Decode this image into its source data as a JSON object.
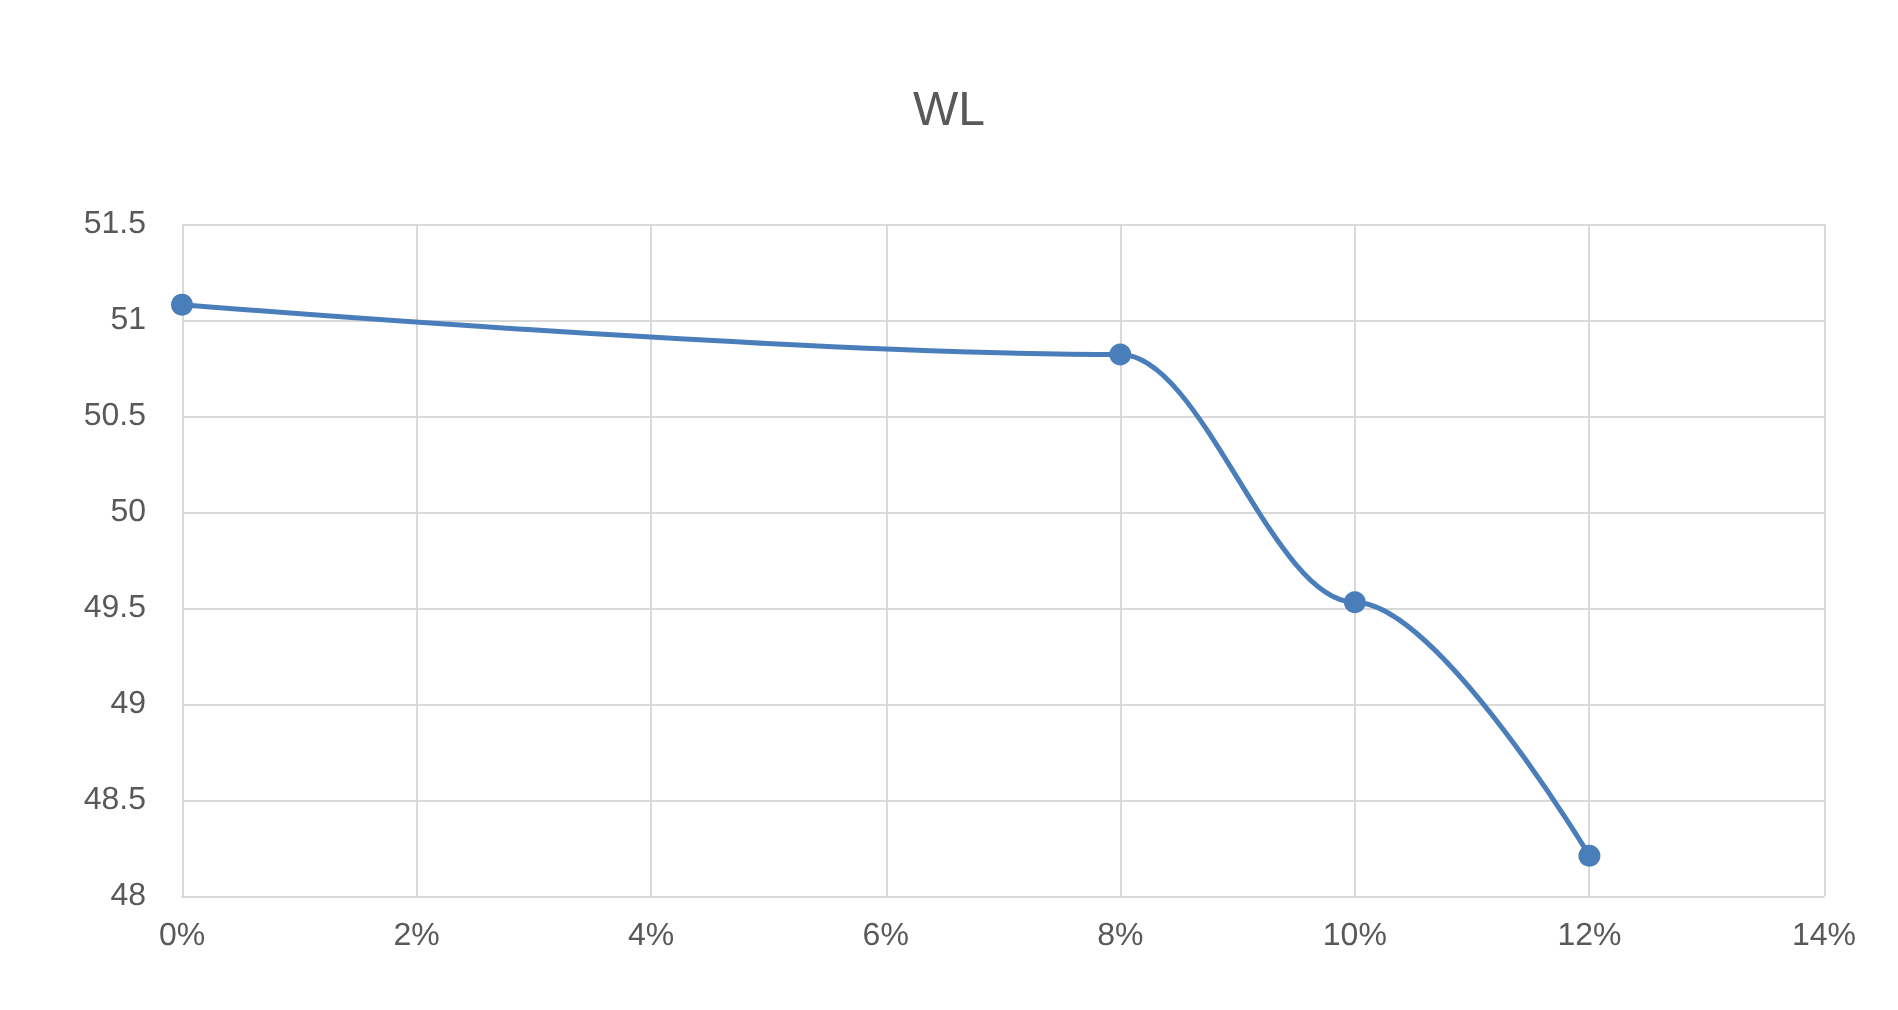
{
  "chart_data": {
    "type": "line",
    "title": "WL",
    "x": [
      0,
      8,
      10,
      12
    ],
    "series": [
      {
        "color": "#4a7ebb",
        "values": [
          51.08,
          50.82,
          49.53,
          48.21
        ]
      }
    ],
    "xlim": [
      0,
      14
    ],
    "xticks": [
      {
        "value": 0,
        "label": "0%"
      },
      {
        "value": 2,
        "label": "2%"
      },
      {
        "value": 4,
        "label": "4%"
      },
      {
        "value": 6,
        "label": "6%"
      },
      {
        "value": 8,
        "label": "8%"
      },
      {
        "value": 10,
        "label": "10%"
      },
      {
        "value": 12,
        "label": "12%"
      },
      {
        "value": 14,
        "label": "14%"
      }
    ],
    "ylim": [
      48,
      51.5
    ],
    "yticks": [
      48,
      48.5,
      49,
      49.5,
      50,
      50.5,
      51,
      51.5
    ],
    "grid": true,
    "marker": "circle",
    "line_style": "solid"
  }
}
